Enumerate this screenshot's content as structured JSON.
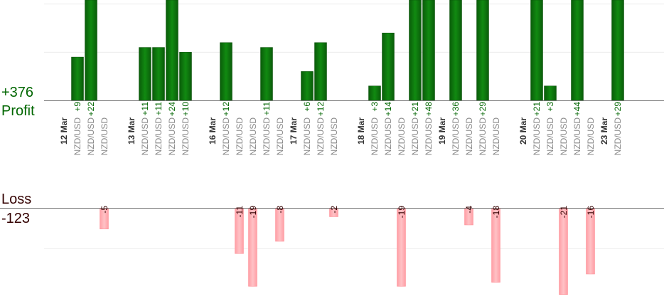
{
  "summary": {
    "profit_total": "+376",
    "profit_label": "Profit",
    "loss_label": "Loss",
    "loss_total": "-123"
  },
  "colors": {
    "profit": "#006600",
    "loss": "#ffadb2",
    "loss_text": "#330000",
    "date_text": "#333333",
    "pair_text": "#888888"
  },
  "chart_data": {
    "type": "bar",
    "profit_scale_max": 30,
    "loss_scale_max": 20,
    "dates": [
      {
        "label": "12 Mar",
        "col": 0
      },
      {
        "label": "13 Mar",
        "col": 5
      },
      {
        "label": "16 Mar",
        "col": 11
      },
      {
        "label": "17 Mar",
        "col": 17
      },
      {
        "label": "18 Mar",
        "col": 22
      },
      {
        "label": "19 Mar",
        "col": 28
      },
      {
        "label": "20 Mar",
        "col": 34
      },
      {
        "label": "23 Mar",
        "col": 40
      }
    ],
    "trades": [
      {
        "col": 1,
        "pair": "NZD/USD",
        "value": 9
      },
      {
        "col": 2,
        "pair": "NZD/USD",
        "value": 22
      },
      {
        "col": 3,
        "pair": "NZD/USD",
        "value": -5
      },
      {
        "col": 6,
        "pair": "NZD/USD",
        "value": 11
      },
      {
        "col": 7,
        "pair": "NZD/USD",
        "value": 11
      },
      {
        "col": 8,
        "pair": "NZD/USD",
        "value": 24
      },
      {
        "col": 9,
        "pair": "NZD/USD",
        "value": 10
      },
      {
        "col": 12,
        "pair": "NZD/USD",
        "value": 12
      },
      {
        "col": 13,
        "pair": "NZD/USD",
        "value": -11
      },
      {
        "col": 14,
        "pair": "NZD/USD",
        "value": -19
      },
      {
        "col": 15,
        "pair": "NZD/USD",
        "value": 11
      },
      {
        "col": 16,
        "pair": "NZD/USD",
        "value": -8
      },
      {
        "col": 18,
        "pair": "NZD/USD",
        "value": 6
      },
      {
        "col": 19,
        "pair": "NZD/USD",
        "value": 12
      },
      {
        "col": 20,
        "pair": "NZD/USD",
        "value": -2
      },
      {
        "col": 23,
        "pair": "NZD/USD",
        "value": 3
      },
      {
        "col": 24,
        "pair": "NZD/USD",
        "value": 14
      },
      {
        "col": 25,
        "pair": "NZD/USD",
        "value": -19
      },
      {
        "col": 26,
        "pair": "NZD/USD",
        "value": 21
      },
      {
        "col": 27,
        "pair": "NZD/USD",
        "value": 48
      },
      {
        "col": 29,
        "pair": "NZD/USD",
        "value": 36
      },
      {
        "col": 30,
        "pair": "NZD/USD",
        "value": -4
      },
      {
        "col": 31,
        "pair": "NZD/USD",
        "value": 29
      },
      {
        "col": 32,
        "pair": "NZD/USD",
        "value": -18
      },
      {
        "col": 35,
        "pair": "NZD/USD",
        "value": 21
      },
      {
        "col": 36,
        "pair": "NZD/USD",
        "value": 3
      },
      {
        "col": 37,
        "pair": "NZD/USD",
        "value": -21
      },
      {
        "col": 38,
        "pair": "NZD/USD",
        "value": 44
      },
      {
        "col": 39,
        "pair": "NZD/USD",
        "value": -16
      },
      {
        "col": 41,
        "pair": "NZD/USD",
        "value": 29
      }
    ],
    "grid": true
  }
}
